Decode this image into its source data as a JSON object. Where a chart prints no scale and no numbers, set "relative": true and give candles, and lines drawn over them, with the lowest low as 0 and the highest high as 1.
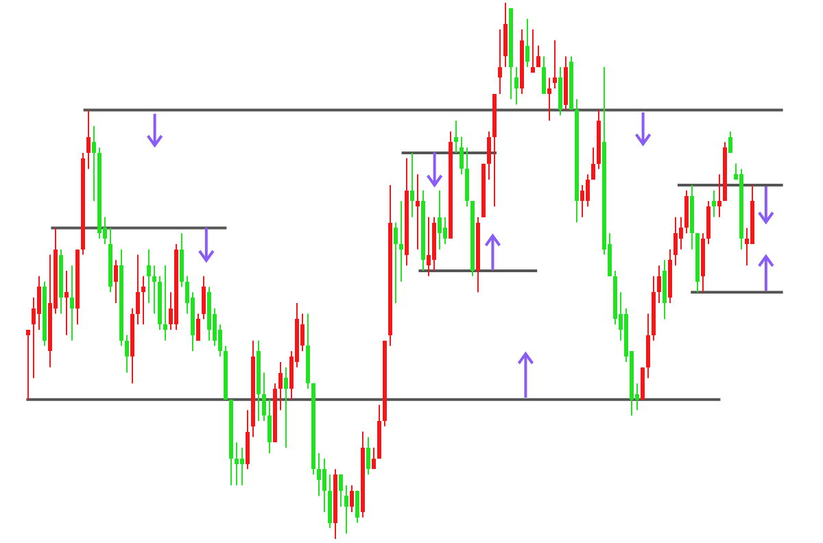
{
  "chart_data": {
    "type": "candlestick",
    "relative": true,
    "categories": [
      null,
      null,
      null,
      null,
      null,
      null,
      null,
      null,
      null,
      null,
      null,
      null,
      null,
      null,
      null,
      null,
      null,
      null,
      null,
      null,
      null,
      null,
      null,
      null,
      null,
      null,
      null,
      null,
      null,
      null,
      null,
      null,
      null,
      null,
      null,
      null,
      null,
      null,
      null,
      null,
      null,
      null,
      null,
      null,
      null,
      null,
      null,
      null,
      null,
      null,
      null,
      null,
      null,
      null,
      null,
      null,
      null,
      null,
      null,
      null,
      null,
      null,
      null,
      null,
      null,
      null,
      null,
      null,
      null,
      null,
      null,
      null,
      null,
      null,
      null,
      null,
      null,
      null,
      null,
      null,
      null,
      null,
      null,
      null,
      null,
      null,
      null,
      null,
      null,
      null,
      null,
      null,
      null,
      null,
      null,
      null,
      null,
      null,
      null,
      null,
      null,
      null,
      null,
      null,
      null,
      null,
      null,
      null,
      null,
      null,
      null,
      null,
      null,
      null,
      null,
      null,
      null,
      null,
      null,
      null,
      null,
      null,
      null,
      null,
      null,
      null,
      null,
      null,
      null,
      null,
      null,
      null,
      null
    ],
    "ohlc": [
      [
        0.38,
        0.39,
        0.26,
        0.39
      ],
      [
        0.4,
        0.45,
        0.3,
        0.43
      ],
      [
        0.42,
        0.49,
        0.39,
        0.47
      ],
      [
        0.47,
        0.48,
        0.36,
        0.37
      ],
      [
        0.35,
        0.53,
        0.32,
        0.44
      ],
      [
        0.43,
        0.58,
        0.42,
        0.54
      ],
      [
        0.53,
        0.54,
        0.42,
        0.45
      ],
      [
        0.45,
        0.5,
        0.38,
        0.46
      ],
      [
        0.45,
        0.51,
        0.37,
        0.43
      ],
      [
        0.43,
        0.54,
        0.4,
        0.54
      ],
      [
        0.54,
        0.72,
        0.53,
        0.71
      ],
      [
        0.72,
        0.8,
        0.69,
        0.75
      ],
      [
        0.74,
        0.77,
        0.63,
        0.72
      ],
      [
        0.72,
        0.73,
        0.56,
        0.57
      ],
      [
        0.58,
        0.6,
        0.55,
        0.56
      ],
      [
        0.55,
        0.58,
        0.46,
        0.47
      ],
      [
        0.48,
        0.52,
        0.44,
        0.51
      ],
      [
        0.51,
        0.54,
        0.36,
        0.37
      ],
      [
        0.37,
        0.38,
        0.31,
        0.34
      ],
      [
        0.34,
        0.43,
        0.29,
        0.42
      ],
      [
        0.42,
        0.53,
        0.4,
        0.46
      ],
      [
        0.46,
        0.49,
        0.4,
        0.47
      ],
      [
        0.51,
        0.54,
        0.44,
        0.49
      ],
      [
        0.49,
        0.51,
        0.42,
        0.48
      ],
      [
        0.48,
        0.49,
        0.39,
        0.4
      ],
      [
        0.4,
        0.51,
        0.37,
        0.39
      ],
      [
        0.4,
        0.46,
        0.39,
        0.43
      ],
      [
        0.4,
        0.55,
        0.39,
        0.54
      ],
      [
        0.54,
        0.57,
        0.47,
        0.48
      ],
      [
        0.48,
        0.49,
        0.42,
        0.44
      ],
      [
        0.45,
        0.46,
        0.35,
        0.38
      ],
      [
        0.37,
        0.42,
        0.37,
        0.41
      ],
      [
        0.42,
        0.49,
        0.41,
        0.47
      ],
      [
        0.46,
        0.47,
        0.37,
        0.39
      ],
      [
        0.42,
        0.43,
        0.36,
        0.37
      ],
      [
        0.39,
        0.4,
        0.34,
        0.35
      ],
      [
        0.35,
        0.36,
        0.26,
        0.26
      ],
      [
        0.26,
        0.26,
        0.1,
        0.15
      ],
      [
        0.15,
        0.18,
        0.1,
        0.14
      ],
      [
        0.15,
        0.17,
        0.1,
        0.14
      ],
      [
        0.14,
        0.24,
        0.13,
        0.2
      ],
      [
        0.21,
        0.37,
        0.19,
        0.34
      ],
      [
        0.35,
        0.37,
        0.22,
        0.27
      ],
      [
        0.27,
        0.31,
        0.22,
        0.23
      ],
      [
        0.23,
        0.26,
        0.16,
        0.18
      ],
      [
        0.18,
        0.29,
        0.18,
        0.28
      ],
      [
        0.28,
        0.33,
        0.24,
        0.31
      ],
      [
        0.3,
        0.32,
        0.17,
        0.28
      ],
      [
        0.28,
        0.35,
        0.26,
        0.34
      ],
      [
        0.33,
        0.44,
        0.32,
        0.41
      ],
      [
        0.36,
        0.42,
        0.35,
        0.4
      ],
      [
        0.36,
        0.42,
        0.28,
        0.29
      ],
      [
        0.29,
        0.29,
        0.12,
        0.13
      ],
      [
        0.13,
        0.16,
        0.08,
        0.11
      ],
      [
        0.13,
        0.15,
        0.05,
        0.09
      ],
      [
        0.09,
        0.12,
        0.02,
        0.03
      ],
      [
        0.03,
        0.13,
        0,
        0.12
      ],
      [
        0.12,
        0.12,
        0.06,
        0.09
      ],
      [
        0.08,
        0.1,
        0.01,
        0.06
      ],
      [
        0.06,
        0.1,
        0.05,
        0.09
      ],
      [
        0.09,
        0.09,
        0.03,
        0.04
      ],
      [
        0.05,
        0.2,
        0.04,
        0.17
      ],
      [
        0.17,
        0.19,
        0.12,
        0.13
      ],
      [
        0.13,
        0.17,
        0.13,
        0.15
      ],
      [
        0.15,
        0.25,
        0.15,
        0.22
      ],
      [
        0.22,
        0.37,
        0.21,
        0.37
      ],
      [
        0.38,
        0.66,
        0.36,
        0.59
      ],
      [
        0.58,
        0.59,
        0.44,
        0.55
      ],
      [
        0.55,
        0.63,
        0.48,
        0.54
      ],
      [
        0.53,
        0.71,
        0.51,
        0.65
      ],
      [
        0.65,
        0.72,
        0.6,
        0.63
      ],
      [
        0.62,
        0.68,
        0.54,
        0.63
      ],
      [
        0.63,
        0.65,
        0.5,
        0.52
      ],
      [
        0.51,
        0.6,
        0.49,
        0.53
      ],
      [
        0.52,
        0.6,
        0.5,
        0.59
      ],
      [
        0.6,
        0.65,
        0.54,
        0.57
      ],
      [
        0.58,
        0.6,
        0.55,
        0.56
      ],
      [
        0.56,
        0.76,
        0.56,
        0.74
      ],
      [
        0.75,
        0.78,
        0.72,
        0.74
      ],
      [
        0.73,
        0.75,
        0.68,
        0.69
      ],
      [
        0.69,
        0.73,
        0.62,
        0.63
      ],
      [
        0.63,
        0.63,
        0.49,
        0.5
      ],
      [
        0.5,
        0.6,
        0.46,
        0.59
      ],
      [
        0.6,
        0.7,
        0.6,
        0.7
      ],
      [
        0.7,
        0.76,
        0.67,
        0.75
      ],
      [
        0.75,
        0.83,
        0.62,
        0.83
      ],
      [
        0.86,
        0.95,
        0.83,
        0.88
      ],
      [
        0.9,
        1,
        0.88,
        0.96
      ],
      [
        0.99,
        0.99,
        0.82,
        0.88
      ],
      [
        0.86,
        0.88,
        0.81,
        0.84
      ],
      [
        0.84,
        0.95,
        0.83,
        0.93
      ],
      [
        0.92,
        0.97,
        0.88,
        0.89
      ],
      [
        0.87,
        0.95,
        0.87,
        0.88
      ],
      [
        0.88,
        0.92,
        0.88,
        0.9
      ],
      [
        0.88,
        0.9,
        0.83,
        0.83
      ],
      [
        0.83,
        0.86,
        0.78,
        0.84
      ],
      [
        0.85,
        0.93,
        0.84,
        0.86
      ],
      [
        0.86,
        0.88,
        0.79,
        0.8
      ],
      [
        0.81,
        0.9,
        0.8,
        0.88
      ],
      [
        0.89,
        0.9,
        0.8,
        0.8
      ],
      [
        0.8,
        0.82,
        0.59,
        0.63
      ],
      [
        0.63,
        0.66,
        0.6,
        0.65
      ],
      [
        0.63,
        0.68,
        0.62,
        0.67
      ],
      [
        0.67,
        0.73,
        0.67,
        0.7
      ],
      [
        0.7,
        0.8,
        0.69,
        0.78
      ],
      [
        0.74,
        0.88,
        0.53,
        0.54
      ],
      [
        0.55,
        0.57,
        0.49,
        0.49
      ],
      [
        0.49,
        0.5,
        0.4,
        0.41
      ],
      [
        0.42,
        0.46,
        0.37,
        0.39
      ],
      [
        0.42,
        0.43,
        0.33,
        0.34
      ],
      [
        0.35,
        0.35,
        0.23,
        0.26
      ],
      [
        0.27,
        0.29,
        0.24,
        0.26
      ],
      [
        0.26,
        0.32,
        0.26,
        0.32
      ],
      [
        0.32,
        0.42,
        0.3,
        0.38
      ],
      [
        0.38,
        0.49,
        0.37,
        0.46
      ],
      [
        0.46,
        0.51,
        0.44,
        0.49
      ],
      [
        0.5,
        0.52,
        0.41,
        0.44
      ],
      [
        0.45,
        0.54,
        0.44,
        0.52
      ],
      [
        0.53,
        0.6,
        0.51,
        0.57
      ],
      [
        0.56,
        0.6,
        0.54,
        0.58
      ],
      [
        0.58,
        0.65,
        0.57,
        0.64
      ],
      [
        0.64,
        0.66,
        0.54,
        0.57
      ],
      [
        0.57,
        0.57,
        0.46,
        0.48
      ],
      [
        0.49,
        0.57,
        0.46,
        0.56
      ],
      [
        0.56,
        0.63,
        0.55,
        0.62
      ],
      [
        0.63,
        0.65,
        0.6,
        0.62
      ],
      [
        0.62,
        0.68,
        0.6,
        0.63
      ],
      [
        0.63,
        0.74,
        0.63,
        0.73
      ],
      [
        0.75,
        0.76,
        0.72,
        0.72
      ],
      [
        0.68,
        0.7,
        0.67,
        0.67
      ],
      [
        0.68,
        0.69,
        0.54,
        0.56
      ],
      [
        0.55,
        0.58,
        0.51,
        0.56
      ],
      [
        0.55,
        0.66,
        0.55,
        0.63
      ]
    ],
    "colors": [
      "#f01818",
      "#f01818",
      "#f01818",
      "#22e022",
      "#f01818",
      "#f01818",
      "#22e022",
      "#f01818",
      "#22e022",
      "#f01818",
      "#f01818",
      "#f01818",
      "#22e022",
      "#22e022",
      "#22e022",
      "#22e022",
      "#f01818",
      "#22e022",
      "#22e022",
      "#f01818",
      "#f01818",
      "#f01818",
      "#22e022",
      "#22e022",
      "#22e022",
      "#22e022",
      "#f01818",
      "#f01818",
      "#22e022",
      "#22e022",
      "#22e022",
      "#f01818",
      "#f01818",
      "#22e022",
      "#22e022",
      "#22e022",
      "#22e022",
      "#22e022",
      "#22e022",
      "#22e022",
      "#f01818",
      "#f01818",
      "#22e022",
      "#22e022",
      "#22e022",
      "#f01818",
      "#f01818",
      "#22e022",
      "#f01818",
      "#f01818",
      "#f01818",
      "#22e022",
      "#22e022",
      "#22e022",
      "#22e022",
      "#22e022",
      "#f01818",
      "#22e022",
      "#22e022",
      "#f01818",
      "#22e022",
      "#f01818",
      "#22e022",
      "#f01818",
      "#f01818",
      "#f01818",
      "#f01818",
      "#22e022",
      "#22e022",
      "#f01818",
      "#22e022",
      "#f01818",
      "#22e022",
      "#f01818",
      "#f01818",
      "#22e022",
      "#22e022",
      "#f01818",
      "#22e022",
      "#22e022",
      "#22e022",
      "#22e022",
      "#f01818",
      "#f01818",
      "#f01818",
      "#f01818",
      "#f01818",
      "#f01818",
      "#22e022",
      "#22e022",
      "#f01818",
      "#22e022",
      "#f01818",
      "#f01818",
      "#22e022",
      "#f01818",
      "#f01818",
      "#22e022",
      "#f01818",
      "#22e022",
      "#22e022",
      "#f01818",
      "#f01818",
      "#f01818",
      "#f01818",
      "#22e022",
      "#22e022",
      "#22e022",
      "#22e022",
      "#22e022",
      "#22e022",
      "#22e022",
      "#f01818",
      "#f01818",
      "#f01818",
      "#f01818",
      "#22e022",
      "#f01818",
      "#f01818",
      "#f01818",
      "#f01818",
      "#22e022",
      "#22e022",
      "#f01818",
      "#f01818",
      "#22e022",
      "#f01818",
      "#f01818",
      "#22e022",
      "#22e022",
      "#22e022",
      "#f01818",
      "#f01818"
    ],
    "ref_lines": [
      {
        "axis": "y",
        "value": 0.8,
        "color": "#555555"
      },
      {
        "axis": "y",
        "value": 0.58,
        "color": "#555555"
      },
      {
        "axis": "y",
        "value": 0.26,
        "color": "#555555"
      },
      {
        "axis": "y",
        "value": 0.72,
        "color": "#555555"
      },
      {
        "axis": "y",
        "value": 0.5,
        "color": "#555555"
      },
      {
        "axis": "y",
        "value": 0.66,
        "color": "#555555"
      },
      {
        "axis": "y",
        "value": 0.46,
        "color": "#555555"
      }
    ]
  }
}
